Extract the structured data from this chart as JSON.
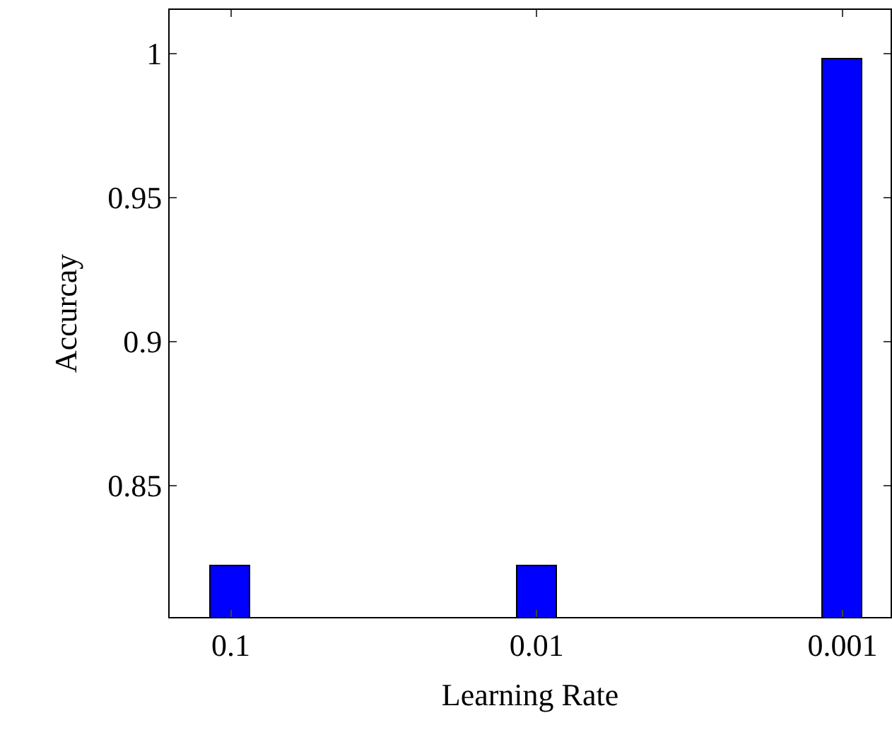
{
  "chart_data": {
    "type": "bar",
    "xlabel": "Learning Rate",
    "ylabel": "Accurcay",
    "categories": [
      "0.1",
      "0.01",
      "0.001"
    ],
    "values": [
      0.822,
      0.822,
      0.998
    ],
    "color": "#0000ff",
    "ylim": [
      0.8044,
      1.0152
    ],
    "yticks": [
      {
        "value": 0.85,
        "label": "0.85"
      },
      {
        "value": 0.9,
        "label": "0.9"
      },
      {
        "value": 0.95,
        "label": "0.95"
      },
      {
        "value": 1,
        "label": "1"
      }
    ],
    "legend": false
  }
}
